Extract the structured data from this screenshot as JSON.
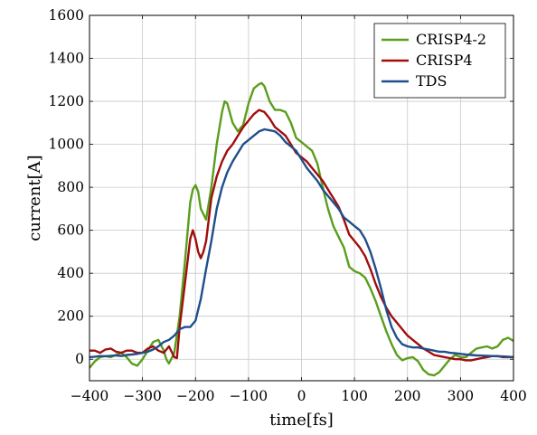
{
  "chart_data": {
    "type": "line",
    "title": "",
    "xlabel": "time[fs]",
    "ylabel": "current[A]",
    "xlim": [
      -400,
      400
    ],
    "ylim": [
      -100,
      1600
    ],
    "x_ticks": [
      -400,
      -300,
      -200,
      -100,
      0,
      100,
      200,
      300,
      400
    ],
    "x_tick_labels": [
      "−400",
      "−300",
      "−200",
      "−100",
      "0",
      "100",
      "200",
      "300",
      "400"
    ],
    "y_ticks": [
      0,
      200,
      400,
      600,
      800,
      1000,
      1200,
      1400,
      1600
    ],
    "y_tick_labels": [
      "0",
      "200",
      "400",
      "600",
      "800",
      "1000",
      "1200",
      "1400",
      "1600"
    ],
    "grid": true,
    "legend_position": "top-right",
    "series": [
      {
        "name": "CRISP4-2",
        "color": "#5a9e1c",
        "x": [
          -400,
          -390,
          -380,
          -370,
          -360,
          -350,
          -340,
          -330,
          -320,
          -310,
          -300,
          -290,
          -280,
          -270,
          -260,
          -255,
          -250,
          -240,
          -230,
          -220,
          -210,
          -205,
          -200,
          -195,
          -190,
          -180,
          -170,
          -160,
          -150,
          -145,
          -140,
          -130,
          -120,
          -110,
          -100,
          -90,
          -80,
          -75,
          -70,
          -60,
          -50,
          -40,
          -30,
          -20,
          -10,
          0,
          10,
          20,
          30,
          40,
          50,
          60,
          70,
          80,
          90,
          100,
          110,
          120,
          130,
          140,
          150,
          160,
          170,
          180,
          190,
          200,
          210,
          220,
          230,
          240,
          250,
          260,
          270,
          280,
          290,
          300,
          310,
          320,
          330,
          340,
          350,
          360,
          370,
          380,
          390,
          400
        ],
        "y": [
          -40,
          -10,
          10,
          15,
          10,
          20,
          30,
          10,
          -20,
          -30,
          0,
          40,
          80,
          90,
          40,
          0,
          -20,
          30,
          200,
          450,
          730,
          790,
          810,
          780,
          700,
          650,
          800,
          1000,
          1150,
          1200,
          1190,
          1100,
          1060,
          1090,
          1190,
          1260,
          1280,
          1285,
          1270,
          1200,
          1160,
          1160,
          1150,
          1100,
          1030,
          1010,
          990,
          970,
          910,
          800,
          700,
          620,
          570,
          520,
          430,
          410,
          400,
          380,
          330,
          270,
          200,
          130,
          70,
          20,
          -5,
          5,
          10,
          -10,
          -50,
          -70,
          -75,
          -60,
          -30,
          0,
          20,
          10,
          10,
          30,
          50,
          55,
          60,
          50,
          60,
          90,
          100,
          85
        ]
      },
      {
        "name": "CRISP4",
        "color": "#a00d0d",
        "x": [
          -400,
          -390,
          -380,
          -370,
          -360,
          -350,
          -340,
          -330,
          -320,
          -310,
          -300,
          -290,
          -280,
          -270,
          -260,
          -250,
          -240,
          -235,
          -230,
          -220,
          -210,
          -205,
          -200,
          -195,
          -190,
          -185,
          -180,
          -175,
          -170,
          -160,
          -150,
          -140,
          -130,
          -120,
          -110,
          -100,
          -90,
          -80,
          -70,
          -60,
          -50,
          -40,
          -30,
          -20,
          -10,
          0,
          10,
          20,
          30,
          40,
          50,
          60,
          70,
          80,
          90,
          100,
          110,
          120,
          130,
          140,
          150,
          160,
          170,
          180,
          190,
          200,
          210,
          220,
          230,
          240,
          250,
          260,
          270,
          280,
          290,
          300,
          310,
          320,
          330,
          340,
          350,
          360,
          370,
          380,
          390,
          400
        ],
        "y": [
          40,
          40,
          30,
          45,
          50,
          35,
          30,
          40,
          40,
          30,
          30,
          50,
          60,
          40,
          30,
          60,
          10,
          5,
          150,
          350,
          560,
          600,
          560,
          500,
          470,
          500,
          550,
          650,
          750,
          850,
          920,
          970,
          1000,
          1040,
          1080,
          1110,
          1140,
          1160,
          1150,
          1120,
          1080,
          1060,
          1040,
          1000,
          960,
          940,
          920,
          890,
          860,
          830,
          790,
          750,
          710,
          650,
          580,
          550,
          520,
          480,
          420,
          350,
          290,
          240,
          200,
          170,
          140,
          110,
          90,
          70,
          50,
          35,
          20,
          15,
          10,
          5,
          0,
          0,
          -5,
          -5,
          0,
          5,
          10,
          15,
          15,
          10,
          10,
          10
        ]
      },
      {
        "name": "TDS",
        "color": "#1f4e8c",
        "x": [
          -400,
          -390,
          -380,
          -370,
          -360,
          -350,
          -340,
          -330,
          -320,
          -310,
          -300,
          -290,
          -280,
          -270,
          -260,
          -250,
          -240,
          -230,
          -220,
          -210,
          -200,
          -190,
          -180,
          -170,
          -160,
          -150,
          -140,
          -130,
          -120,
          -110,
          -100,
          -90,
          -80,
          -70,
          -60,
          -50,
          -40,
          -30,
          -20,
          -10,
          0,
          10,
          20,
          30,
          40,
          50,
          60,
          70,
          80,
          90,
          100,
          110,
          120,
          130,
          140,
          150,
          160,
          170,
          180,
          190,
          200,
          210,
          220,
          230,
          240,
          250,
          260,
          270,
          280,
          290,
          300,
          310,
          320,
          330,
          340,
          350,
          360,
          370,
          380,
          390,
          400
        ],
        "y": [
          10,
          12,
          15,
          14,
          16,
          18,
          15,
          20,
          22,
          25,
          30,
          35,
          45,
          60,
          80,
          90,
          110,
          140,
          150,
          150,
          180,
          280,
          420,
          550,
          700,
          800,
          870,
          920,
          960,
          1000,
          1020,
          1040,
          1060,
          1070,
          1065,
          1060,
          1040,
          1010,
          990,
          970,
          930,
          890,
          860,
          830,
          790,
          760,
          730,
          700,
          660,
          640,
          620,
          600,
          560,
          500,
          420,
          330,
          230,
          150,
          100,
          70,
          60,
          55,
          55,
          50,
          45,
          40,
          35,
          35,
          30,
          28,
          25,
          22,
          20,
          18,
          17,
          16,
          15,
          14,
          13,
          12,
          10
        ]
      }
    ]
  }
}
